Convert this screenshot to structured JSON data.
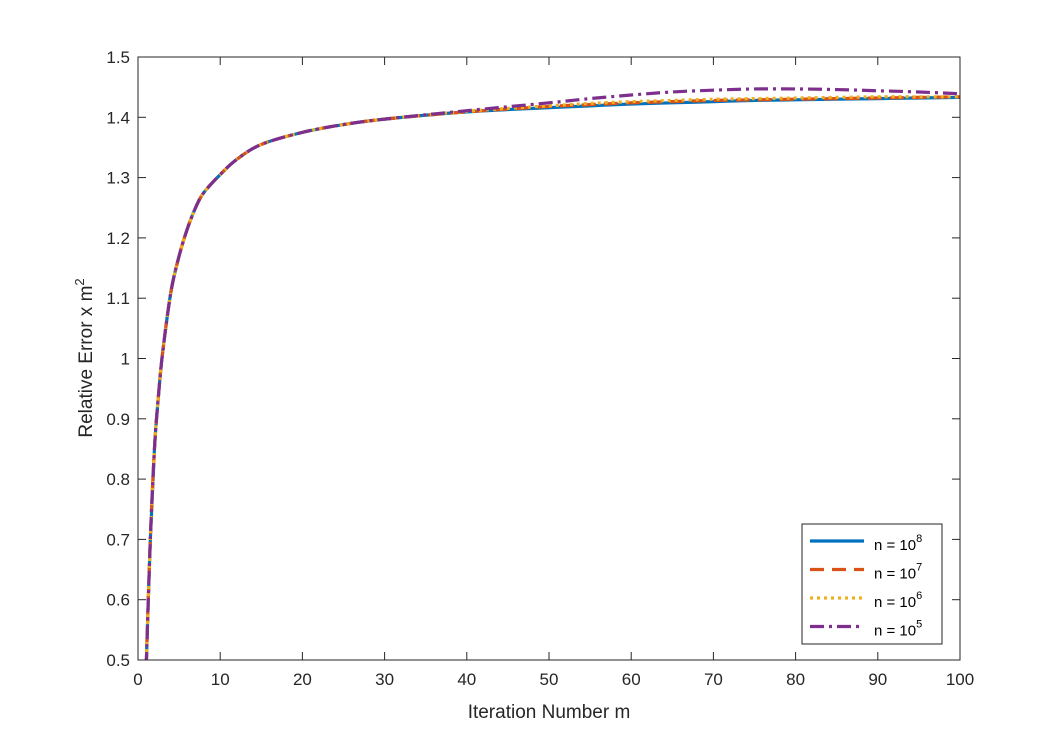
{
  "chart_data": {
    "type": "line",
    "title": "",
    "xlabel": "Iteration Number m",
    "ylabel": {
      "base": "Relative Error x m",
      "sup": "2"
    },
    "xlim": [
      0,
      100
    ],
    "ylim": [
      0.5,
      1.5
    ],
    "xticks": [
      "0",
      "10",
      "20",
      "30",
      "40",
      "50",
      "60",
      "70",
      "80",
      "90",
      "100"
    ],
    "yticks": [
      "0.5",
      "0.6",
      "0.7",
      "0.8",
      "0.9",
      "1",
      "1.1",
      "1.2",
      "1.3",
      "1.4",
      "1.5"
    ],
    "grid": false,
    "legend_position": "bottom-right",
    "x": [
      1,
      1.5,
      2,
      2.5,
      3,
      4,
      5,
      6,
      7,
      8,
      10,
      12,
      15,
      20,
      25,
      30,
      40,
      50,
      55,
      60,
      65,
      70,
      75,
      80,
      85,
      90,
      95,
      100
    ],
    "series": [
      {
        "name": "n = 10",
        "name_sup": "8",
        "color": "#0072BD",
        "dash": "solid",
        "values": [
          0.49,
          0.7,
          0.85,
          0.94,
          1.01,
          1.11,
          1.17,
          1.215,
          1.25,
          1.275,
          1.305,
          1.33,
          1.355,
          1.375,
          1.388,
          1.397,
          1.409,
          1.416,
          1.419,
          1.422,
          1.424,
          1.426,
          1.428,
          1.429,
          1.43,
          1.431,
          1.432,
          1.433
        ]
      },
      {
        "name": "n = 10",
        "name_sup": "7",
        "color": "#D95319",
        "dash": "dashed",
        "values": [
          0.49,
          0.7,
          0.85,
          0.94,
          1.01,
          1.11,
          1.17,
          1.215,
          1.25,
          1.275,
          1.305,
          1.33,
          1.355,
          1.375,
          1.388,
          1.397,
          1.409,
          1.418,
          1.421,
          1.424,
          1.426,
          1.428,
          1.429,
          1.43,
          1.431,
          1.432,
          1.433,
          1.434
        ]
      },
      {
        "name": "n = 10",
        "name_sup": "6",
        "color": "#EDB120",
        "dash": "dotted",
        "values": [
          0.49,
          0.7,
          0.85,
          0.94,
          1.01,
          1.11,
          1.17,
          1.215,
          1.25,
          1.275,
          1.305,
          1.33,
          1.355,
          1.375,
          1.388,
          1.397,
          1.41,
          1.419,
          1.423,
          1.426,
          1.428,
          1.43,
          1.431,
          1.432,
          1.433,
          1.434,
          1.434,
          1.434
        ]
      },
      {
        "name": "n = 10",
        "name_sup": "5",
        "color": "#7E2F8E",
        "dash": "dashdot",
        "values": [
          0.49,
          0.7,
          0.85,
          0.94,
          1.01,
          1.11,
          1.17,
          1.215,
          1.25,
          1.275,
          1.305,
          1.33,
          1.355,
          1.375,
          1.388,
          1.397,
          1.411,
          1.424,
          1.431,
          1.437,
          1.442,
          1.445,
          1.447,
          1.447,
          1.446,
          1.444,
          1.442,
          1.439
        ]
      }
    ]
  }
}
